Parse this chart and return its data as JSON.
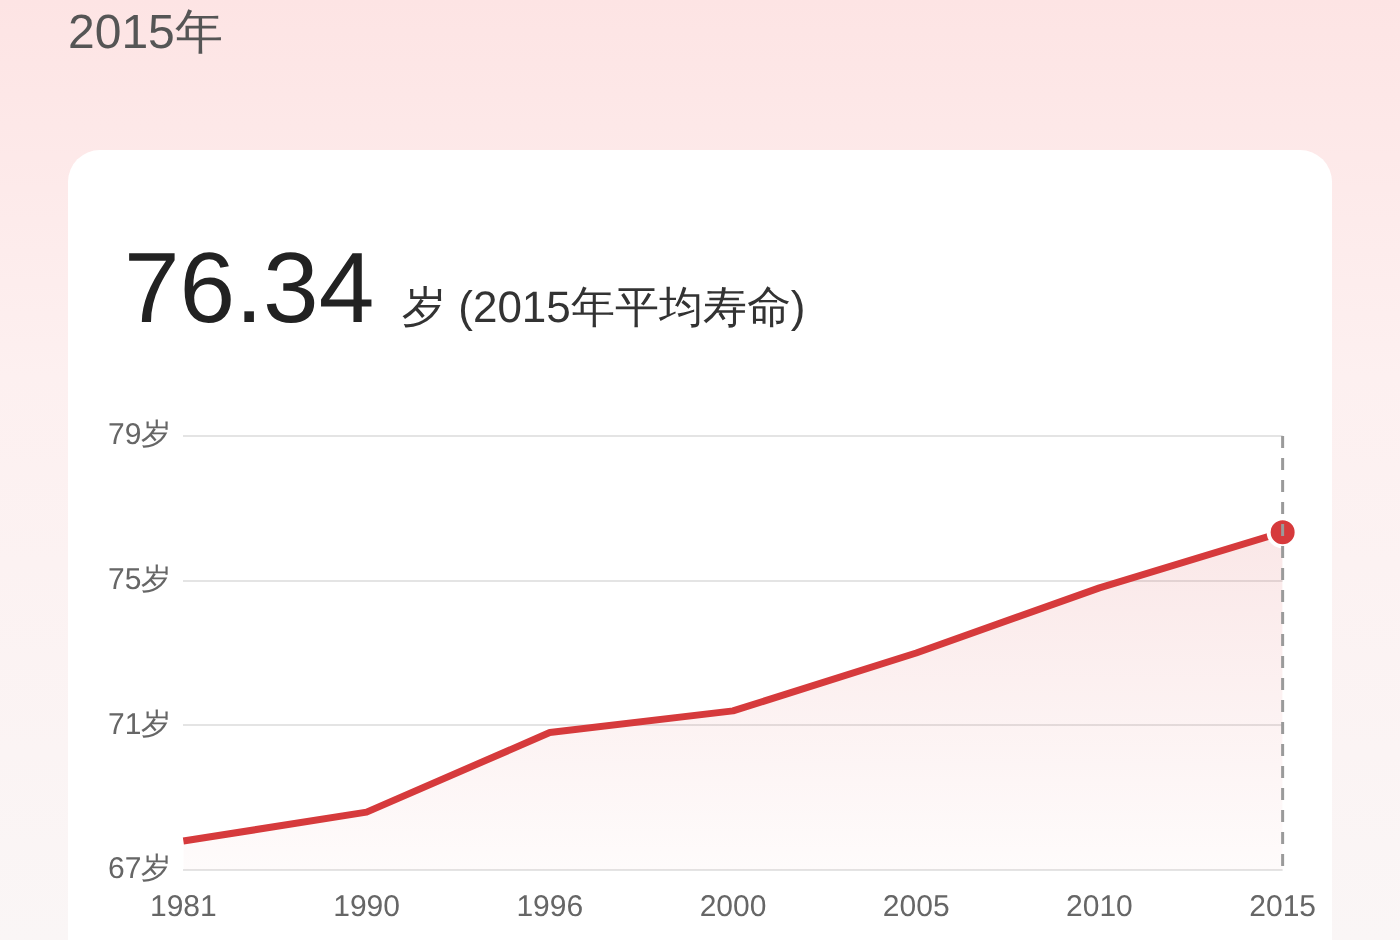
{
  "chart_data": {
    "type": "area",
    "title": "2015年",
    "subtitle": "76.34 岁 (2015年平均寿命)",
    "categories": [
      "1981",
      "1990",
      "1996",
      "2000",
      "2005",
      "2010",
      "2015"
    ],
    "series": [
      {
        "color": "#d63a3c",
        "values": [
          67.8,
          68.6,
          70.8,
          71.4,
          73.0,
          74.8,
          76.34
        ]
      }
    ],
    "ylim": [
      67,
      79
    ],
    "yticks": [
      {
        "value": 67,
        "label": "67岁"
      },
      {
        "value": 71,
        "label": "71岁"
      },
      {
        "value": 75,
        "label": "75岁"
      },
      {
        "value": 79,
        "label": "79岁"
      }
    ],
    "grid": "y",
    "line_style": "solid",
    "ref_lines": [
      {
        "axis": "x",
        "value": "2015",
        "color": "#9a9a9a",
        "line_style": "dashed"
      }
    ]
  }
}
